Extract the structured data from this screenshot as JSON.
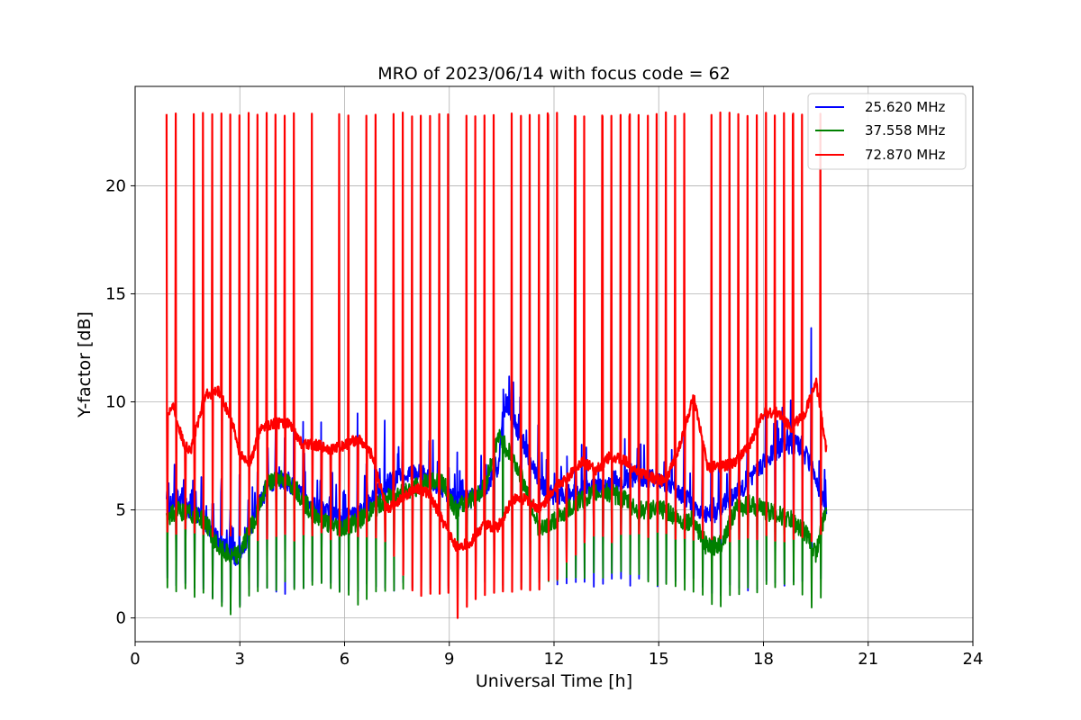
{
  "chart_data": {
    "type": "line",
    "title": "MRO of 2023/06/14 with focus code = 62",
    "xlabel": "Universal Time [h]",
    "ylabel": "Y-factor [dB]",
    "xlim": [
      0,
      24
    ],
    "ylim": [
      -1.1,
      24.6
    ],
    "xticks": [
      0,
      3,
      6,
      9,
      12,
      15,
      18,
      21,
      24
    ],
    "yticks": [
      0,
      5,
      10,
      15,
      20
    ],
    "grid": true,
    "legend_position": "upper right",
    "spike_period_h": 0.26,
    "series": [
      {
        "name": "25.620 MHz",
        "color": "#0000ff",
        "baseline": {
          "x": [
            0.9,
            1.2,
            1.6,
            2.0,
            2.4,
            2.8,
            3.0,
            3.4,
            3.8,
            4.2,
            4.6,
            5.0,
            5.6,
            6.0,
            6.4,
            6.8,
            7.2,
            7.6,
            8.0,
            8.4,
            8.8,
            9.2,
            9.6,
            10.0,
            10.4,
            10.6,
            10.8,
            11.0,
            11.4,
            11.8,
            12.2,
            12.6,
            13.0,
            13.4,
            13.8,
            14.2,
            14.6,
            15.0,
            15.4,
            15.8,
            16.2,
            16.6,
            17.0,
            17.4,
            17.8,
            18.2,
            18.6,
            19.0,
            19.4,
            19.8
          ],
          "y": [
            5.0,
            5.5,
            5.0,
            4.5,
            3.5,
            2.8,
            2.9,
            4.5,
            6.2,
            6.4,
            6.0,
            5.3,
            4.8,
            4.6,
            4.8,
            5.5,
            6.2,
            6.5,
            6.8,
            6.5,
            6.0,
            5.5,
            5.5,
            6.0,
            7.0,
            10.0,
            9.5,
            8.5,
            7.0,
            5.8,
            5.5,
            5.8,
            6.0,
            6.0,
            6.2,
            6.5,
            6.5,
            6.5,
            6.0,
            5.5,
            4.8,
            4.8,
            5.5,
            6.0,
            6.8,
            7.5,
            8.0,
            8.0,
            7.0,
            5.0
          ]
        },
        "spike_max": {
          "x": [
            0.9,
            2.0,
            3.4,
            4.2,
            5.0,
            6.0,
            7.0,
            7.4,
            8.0,
            8.3,
            8.6,
            9.2,
            10.4,
            11.0,
            12.6,
            14.2,
            15.8,
            17.4,
            17.9,
            18.6,
            19.2,
            19.6,
            19.8
          ],
          "y": [
            6.3,
            6.8,
            7.0,
            13.3,
            10.3,
            9.3,
            10.0,
            17.6,
            15.3,
            17.0,
            14.0,
            8.0,
            10.5,
            8.0,
            7.5,
            9.0,
            9.0,
            11.0,
            12.0,
            13.6,
            15.0,
            15.2,
            12.6
          ]
        },
        "spike_min": {
          "x": [
            0.9,
            2.0,
            2.8,
            3.4,
            4.2,
            5.0,
            6.0,
            7.0,
            8.0,
            9.0,
            10.0,
            11.0,
            12.0,
            13.0,
            14.0,
            15.0,
            16.0,
            16.6,
            17.0,
            18.0,
            19.0,
            19.8
          ],
          "y": [
            1.5,
            1.3,
            0.0,
            1.3,
            0.8,
            1.3,
            1.2,
            1.2,
            1.3,
            1.3,
            1.4,
            1.5,
            1.5,
            1.4,
            1.5,
            1.4,
            1.5,
            0.8,
            1.2,
            1.3,
            1.4,
            1.5
          ]
        }
      },
      {
        "name": "37.558 MHz",
        "color": "#008000",
        "baseline": {
          "x": [
            0.9,
            1.2,
            1.6,
            2.0,
            2.4,
            2.8,
            3.0,
            3.4,
            3.8,
            4.2,
            4.6,
            5.0,
            5.6,
            6.0,
            6.4,
            6.8,
            7.2,
            7.6,
            8.0,
            8.4,
            8.8,
            9.2,
            9.6,
            10.0,
            10.4,
            10.8,
            11.2,
            11.6,
            12.0,
            12.4,
            12.8,
            13.2,
            13.6,
            14.0,
            14.4,
            14.8,
            15.2,
            15.6,
            16.0,
            16.4,
            16.8,
            17.2,
            17.6,
            18.0,
            18.4,
            18.8,
            19.2,
            19.5,
            19.8
          ],
          "y": [
            4.5,
            5.0,
            4.8,
            4.5,
            3.2,
            2.8,
            3.0,
            4.5,
            6.2,
            6.5,
            6.0,
            5.0,
            4.3,
            4.2,
            4.5,
            5.0,
            5.5,
            5.8,
            6.0,
            6.3,
            6.3,
            5.0,
            5.5,
            6.0,
            8.4,
            7.5,
            6.0,
            4.0,
            4.5,
            5.0,
            5.5,
            5.8,
            5.8,
            5.5,
            5.0,
            5.0,
            5.0,
            4.5,
            4.5,
            3.2,
            3.5,
            5.0,
            5.3,
            5.0,
            4.8,
            4.5,
            4.0,
            3.0,
            5.0
          ]
        },
        "spike_min": {
          "x": [
            0.9,
            1.5,
            2.0,
            2.4,
            2.8,
            3.4,
            4.2,
            5.0,
            6.0,
            6.5,
            7.0,
            8.0,
            9.0,
            10.0,
            11.0,
            12.0,
            13.0,
            14.0,
            15.0,
            16.0,
            16.6,
            17.0,
            18.0,
            19.0,
            19.5,
            19.8
          ],
          "y": [
            1.2,
            1.0,
            0.9,
            0.2,
            0.0,
            1.2,
            1.3,
            1.3,
            1.1,
            0.3,
            1.2,
            1.2,
            1.3,
            1.3,
            1.3,
            1.5,
            1.7,
            1.8,
            1.4,
            1.2,
            0.1,
            1.0,
            1.2,
            1.3,
            0.1,
            1.5
          ]
        }
      },
      {
        "name": "72.870 MHz",
        "color": "#ff0000",
        "baseline": {
          "x": [
            0.9,
            1.1,
            1.4,
            1.6,
            2.0,
            2.4,
            2.8,
            3.0,
            3.3,
            3.6,
            4.0,
            4.4,
            4.8,
            5.2,
            5.6,
            6.0,
            6.4,
            6.8,
            7.2,
            7.6,
            8.0,
            8.4,
            8.8,
            9.2,
            9.6,
            10.0,
            10.4,
            10.8,
            11.2,
            11.6,
            12.0,
            12.4,
            12.8,
            13.2,
            13.6,
            14.0,
            14.4,
            14.8,
            15.2,
            15.6,
            16.0,
            16.4,
            16.8,
            17.2,
            17.6,
            18.0,
            18.4,
            18.8,
            19.2,
            19.5,
            19.8
          ],
          "y": [
            9.5,
            9.8,
            8.0,
            7.8,
            10.3,
            10.5,
            9.0,
            7.5,
            7.2,
            8.8,
            9.0,
            9.0,
            8.0,
            8.0,
            7.8,
            8.0,
            8.3,
            7.5,
            5.0,
            5.5,
            6.0,
            5.8,
            4.5,
            3.3,
            3.5,
            4.3,
            4.2,
            5.5,
            5.5,
            5.0,
            6.0,
            6.5,
            7.3,
            6.8,
            7.5,
            7.3,
            6.8,
            6.5,
            6.3,
            8.0,
            10.2,
            7.0,
            7.0,
            7.2,
            8.0,
            9.5,
            9.5,
            8.8,
            9.5,
            11.0,
            7.8
          ]
        },
        "spike_max": {
          "x": [
            0.9,
            19.8
          ],
          "y": [
            23.4,
            23.4
          ]
        },
        "spike_min": {
          "x": [
            0.9,
            2.0,
            3.0,
            4.0,
            5.0,
            6.0,
            7.0,
            8.0,
            9.0,
            9.2,
            9.4,
            10.0,
            11.0,
            12.0,
            13.0,
            14.0,
            15.0,
            16.0,
            17.0,
            18.0,
            19.0,
            19.8
          ],
          "y": [
            3.8,
            3.7,
            3.6,
            3.5,
            3.6,
            3.6,
            3.6,
            1.0,
            0.8,
            0.0,
            0.0,
            0.8,
            1.0,
            1.5,
            3.5,
            3.5,
            3.6,
            3.5,
            3.5,
            3.6,
            3.5,
            3.5
          ]
        }
      }
    ]
  }
}
